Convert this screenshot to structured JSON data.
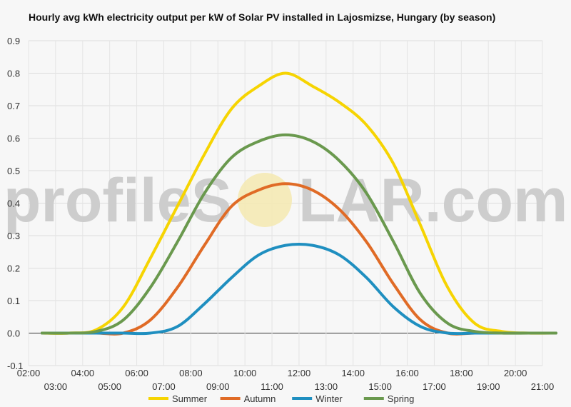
{
  "watermark": {
    "text_left": "profileS",
    "text_right": "LAR.com"
  },
  "chart_data": {
    "type": "line",
    "title": "Hourly avg kWh electricity output per kW of Solar PV installed in Lajosmizse, Hungary (by season)",
    "x_ticks_top": [
      "02:00",
      "04:00",
      "06:00",
      "08:00",
      "10:00",
      "12:00",
      "14:00",
      "16:00",
      "18:00",
      "20:00"
    ],
    "x_ticks_bottom": [
      "03:00",
      "05:00",
      "07:00",
      "09:00",
      "11:00",
      "13:00",
      "15:00",
      "17:00",
      "19:00",
      "21:00"
    ],
    "x_hours": [
      2,
      3,
      4,
      5,
      6,
      7,
      8,
      9,
      10,
      11,
      12,
      13,
      14,
      15,
      16,
      17,
      18,
      19,
      20,
      21
    ],
    "xlim": [
      2,
      21
    ],
    "ylim": [
      -0.1,
      0.9
    ],
    "y_ticks": [
      "-0.1",
      "0.0",
      "0.1",
      "0.2",
      "0.3",
      "0.4",
      "0.5",
      "0.6",
      "0.7",
      "0.8",
      "0.9"
    ],
    "grid": true,
    "legend_position": "bottom",
    "series": [
      {
        "name": "Summer",
        "color": "#f6d402",
        "values": [
          0,
          0,
          0.01,
          0.08,
          0.23,
          0.39,
          0.55,
          0.69,
          0.76,
          0.8,
          0.76,
          0.71,
          0.64,
          0.52,
          0.33,
          0.14,
          0.03,
          0.005,
          0,
          0
        ]
      },
      {
        "name": "Autumn",
        "color": "#e06b26",
        "values": [
          0,
          0,
          0,
          0,
          0.04,
          0.14,
          0.27,
          0.39,
          0.44,
          0.46,
          0.44,
          0.38,
          0.28,
          0.15,
          0.04,
          0,
          0,
          0,
          0,
          0
        ]
      },
      {
        "name": "Winter",
        "color": "#1f8fc0",
        "values": [
          0,
          0,
          0,
          0,
          0,
          0.02,
          0.09,
          0.17,
          0.24,
          0.27,
          0.27,
          0.24,
          0.17,
          0.08,
          0.02,
          0,
          0,
          0,
          0,
          0
        ]
      },
      {
        "name": "Spring",
        "color": "#6a994e",
        "values": [
          0,
          0,
          0.005,
          0.04,
          0.14,
          0.28,
          0.43,
          0.54,
          0.59,
          0.61,
          0.59,
          0.53,
          0.43,
          0.28,
          0.12,
          0.03,
          0.005,
          0,
          0,
          0
        ]
      }
    ]
  }
}
